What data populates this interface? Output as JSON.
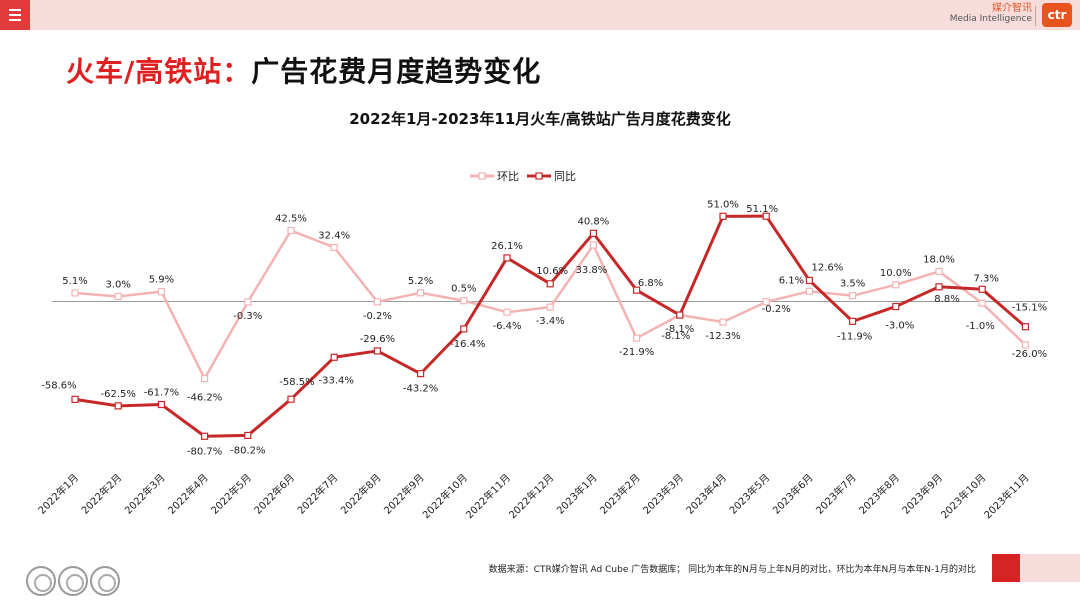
{
  "header": {
    "brand_cn": "媒介智讯",
    "brand_en": "Media Intelligence",
    "logo_text": "ctr"
  },
  "page_title": {
    "red_part": "火车/高铁站：",
    "black_part": "广告花费月度趋势变化"
  },
  "footer": {
    "note": "数据来源：CTR媒介智讯 Ad Cube 广告数据库； 同比为本年的N月与上年N月的对比，环比为本年N月与本年N-1月的对比"
  },
  "colors": {
    "mom": "#f4b3b3",
    "yoy": "#c62828",
    "accent": "#e02020"
  },
  "chart_data": {
    "type": "line",
    "title": "2022年1月-2023年11月火车/高铁站广告月度花费变化",
    "legend_position": "top-center",
    "ylim": [
      -110,
      70
    ],
    "grid": false,
    "categories": [
      "2022年1月",
      "2022年2月",
      "2022年3月",
      "2022年4月",
      "2022年5月",
      "2022年6月",
      "2022年7月",
      "2022年8月",
      "2022年9月",
      "2022年10月",
      "2022年11月",
      "2022年12月",
      "2023年1月",
      "2023年2月",
      "2023年3月",
      "2023年4月",
      "2023年5月",
      "2023年6月",
      "2023年7月",
      "2023年8月",
      "2023年9月",
      "2023年10月",
      "2023年11月"
    ],
    "series": [
      {
        "name": "环比",
        "values": [
          5.1,
          3.0,
          5.9,
          -46.2,
          -0.3,
          42.5,
          32.4,
          -0.2,
          5.2,
          0.5,
          -6.4,
          -3.4,
          33.8,
          -21.9,
          -8.1,
          -12.3,
          -0.2,
          6.1,
          3.5,
          10.0,
          18.0,
          -1.0,
          -26.0
        ],
        "labels": [
          "5.1%",
          "3.0%",
          "5.9%",
          "-46.2%",
          "-0.3%",
          "42.5%",
          "32.4%",
          "-0.2%",
          "5.2%",
          "0.5%",
          "-6.4%",
          "-3.4%",
          "33.8%",
          "-21.9%",
          "-8.1%",
          "-12.3%",
          "-0.2%",
          "6.1%",
          "3.5%",
          "10.0%",
          "18.0%",
          "-1.0%",
          "-26.0%"
        ]
      },
      {
        "name": "同比",
        "values": [
          -58.6,
          -62.5,
          -61.7,
          -80.7,
          -80.2,
          -58.5,
          -33.4,
          -29.6,
          -43.2,
          -16.4,
          26.1,
          10.6,
          40.8,
          6.8,
          -8.1,
          51.0,
          51.1,
          12.6,
          -11.9,
          -3.0,
          8.8,
          7.3,
          -15.1
        ],
        "labels": [
          "-58.6%",
          "-62.5%",
          "-61.7%",
          "-80.7%",
          "-80.2%",
          "-58.5%",
          "-33.4%",
          "-29.6%",
          "-43.2%",
          "-16.4%",
          "26.1%",
          "10.6%",
          "40.8%",
          "6.8%",
          "-8.1%",
          "51.0%",
          "51.1%",
          "12.6%",
          "-11.9%",
          "-3.0%",
          "8.8%",
          "7.3%",
          "-15.1%"
        ]
      }
    ]
  }
}
